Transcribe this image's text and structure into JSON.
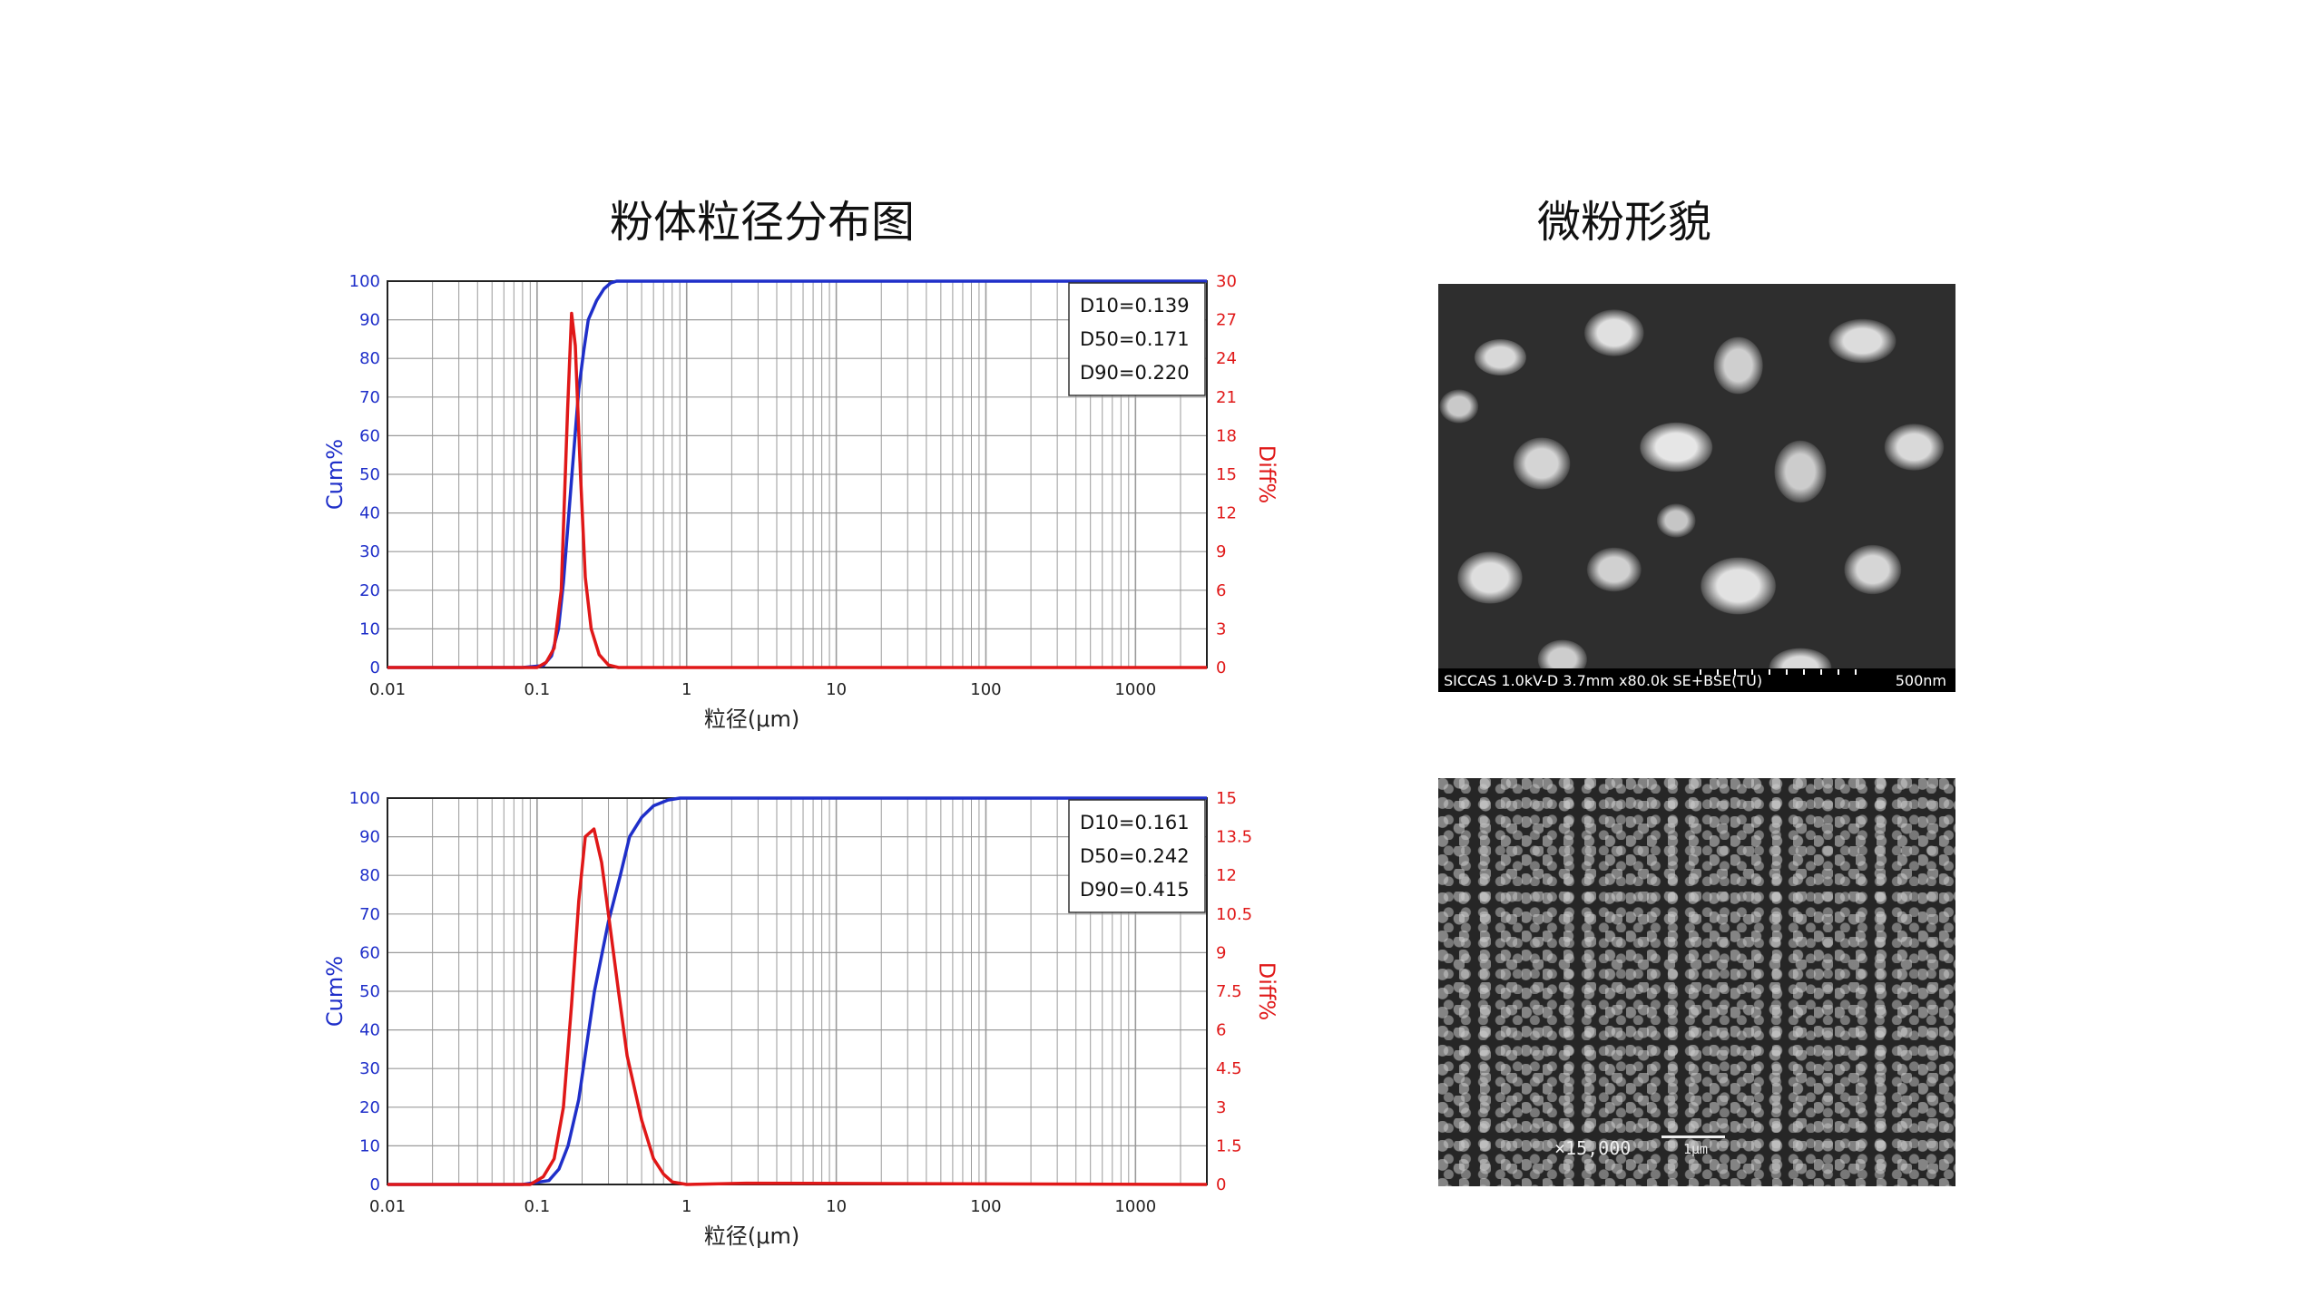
{
  "headings": {
    "left": "粉体粒径分布图",
    "right": "微粉形貌"
  },
  "colors": {
    "cum": "#1f2fc9",
    "diff": "#e01818",
    "grid": "#9a9a9a"
  },
  "chart_data": [
    {
      "type": "line",
      "xscale": "log",
      "xlim": [
        0.01,
        3000
      ],
      "xticks": [
        "0.01",
        "0.1",
        "1",
        "10",
        "100",
        "1000"
      ],
      "xlabel": "粒径(μm)",
      "ylabel_left": "Cum%",
      "ylabel_right": "Diff%",
      "ylim_left": [
        0,
        100
      ],
      "ylim_right": [
        0,
        30
      ],
      "yticks_left": [
        "0",
        "10",
        "20",
        "30",
        "40",
        "50",
        "60",
        "70",
        "80",
        "90",
        "100"
      ],
      "yticks_right": [
        "0",
        "3",
        "6",
        "9",
        "12",
        "15",
        "18",
        "21",
        "24",
        "27",
        "30"
      ],
      "legend_box": [
        "D10=0.139",
        "D50=0.171",
        "D90=0.220"
      ],
      "legend_position": "top-right",
      "series": [
        {
          "axis": "left",
          "x": [
            0.01,
            0.08,
            0.11,
            0.125,
            0.139,
            0.15,
            0.171,
            0.19,
            0.205,
            0.22,
            0.25,
            0.28,
            0.31,
            0.34,
            3000
          ],
          "values": [
            0,
            0,
            0.5,
            3,
            10,
            22,
            50,
            72,
            82,
            90,
            95,
            98,
            99.5,
            100,
            100
          ]
        },
        {
          "axis": "right",
          "x": [
            0.01,
            0.1,
            0.115,
            0.13,
            0.145,
            0.16,
            0.17,
            0.18,
            0.195,
            0.21,
            0.23,
            0.26,
            0.3,
            0.35,
            0.4,
            3000
          ],
          "values": [
            0,
            0,
            0.4,
            1.5,
            6,
            20,
            27.5,
            25,
            15,
            7,
            3,
            1,
            0.2,
            0,
            0,
            0
          ]
        }
      ]
    },
    {
      "type": "line",
      "xscale": "log",
      "xlim": [
        0.01,
        3000
      ],
      "xticks": [
        "0.01",
        "0.1",
        "1",
        "10",
        "100",
        "1000"
      ],
      "xlabel": "粒径(μm)",
      "ylabel_left": "Cum%",
      "ylabel_right": "Diff%",
      "ylim_left": [
        0,
        100
      ],
      "ylim_right": [
        0,
        15
      ],
      "yticks_left": [
        "0",
        "10",
        "20",
        "30",
        "40",
        "50",
        "60",
        "70",
        "80",
        "90",
        "100"
      ],
      "yticks_right": [
        "0",
        "1.5",
        "3",
        "4.5",
        "6",
        "7.5",
        "9",
        "10.5",
        "12",
        "13.5",
        "15"
      ],
      "legend_box": [
        "D10=0.161",
        "D50=0.242",
        "D90=0.415"
      ],
      "legend_position": "top-right",
      "series": [
        {
          "axis": "left",
          "x": [
            0.01,
            0.08,
            0.12,
            0.14,
            0.161,
            0.19,
            0.242,
            0.3,
            0.36,
            0.415,
            0.5,
            0.6,
            0.75,
            0.9,
            3000
          ],
          "values": [
            0,
            0,
            1,
            4,
            10,
            22,
            50,
            68,
            80,
            90,
            95,
            98,
            99.5,
            100,
            100
          ]
        },
        {
          "axis": "right",
          "x": [
            0.01,
            0.09,
            0.11,
            0.13,
            0.15,
            0.17,
            0.19,
            0.21,
            0.24,
            0.27,
            0.3,
            0.35,
            0.4,
            0.5,
            0.6,
            0.7,
            0.8,
            1,
            2.5,
            3000
          ],
          "values": [
            0,
            0,
            0.3,
            1,
            3,
            7,
            11,
            13.5,
            13.8,
            12.5,
            10.5,
            7.5,
            5,
            2.5,
            1,
            0.4,
            0.1,
            0,
            0.05,
            0
          ]
        }
      ]
    }
  ],
  "sem_images": {
    "top": {
      "info": "SICCAS 1.0kV-D 3.7mm x80.0k SE+BSE(TU)",
      "scale": "500nm"
    },
    "bottom": {
      "magnification": "×15,000",
      "scale": "1μm"
    }
  }
}
